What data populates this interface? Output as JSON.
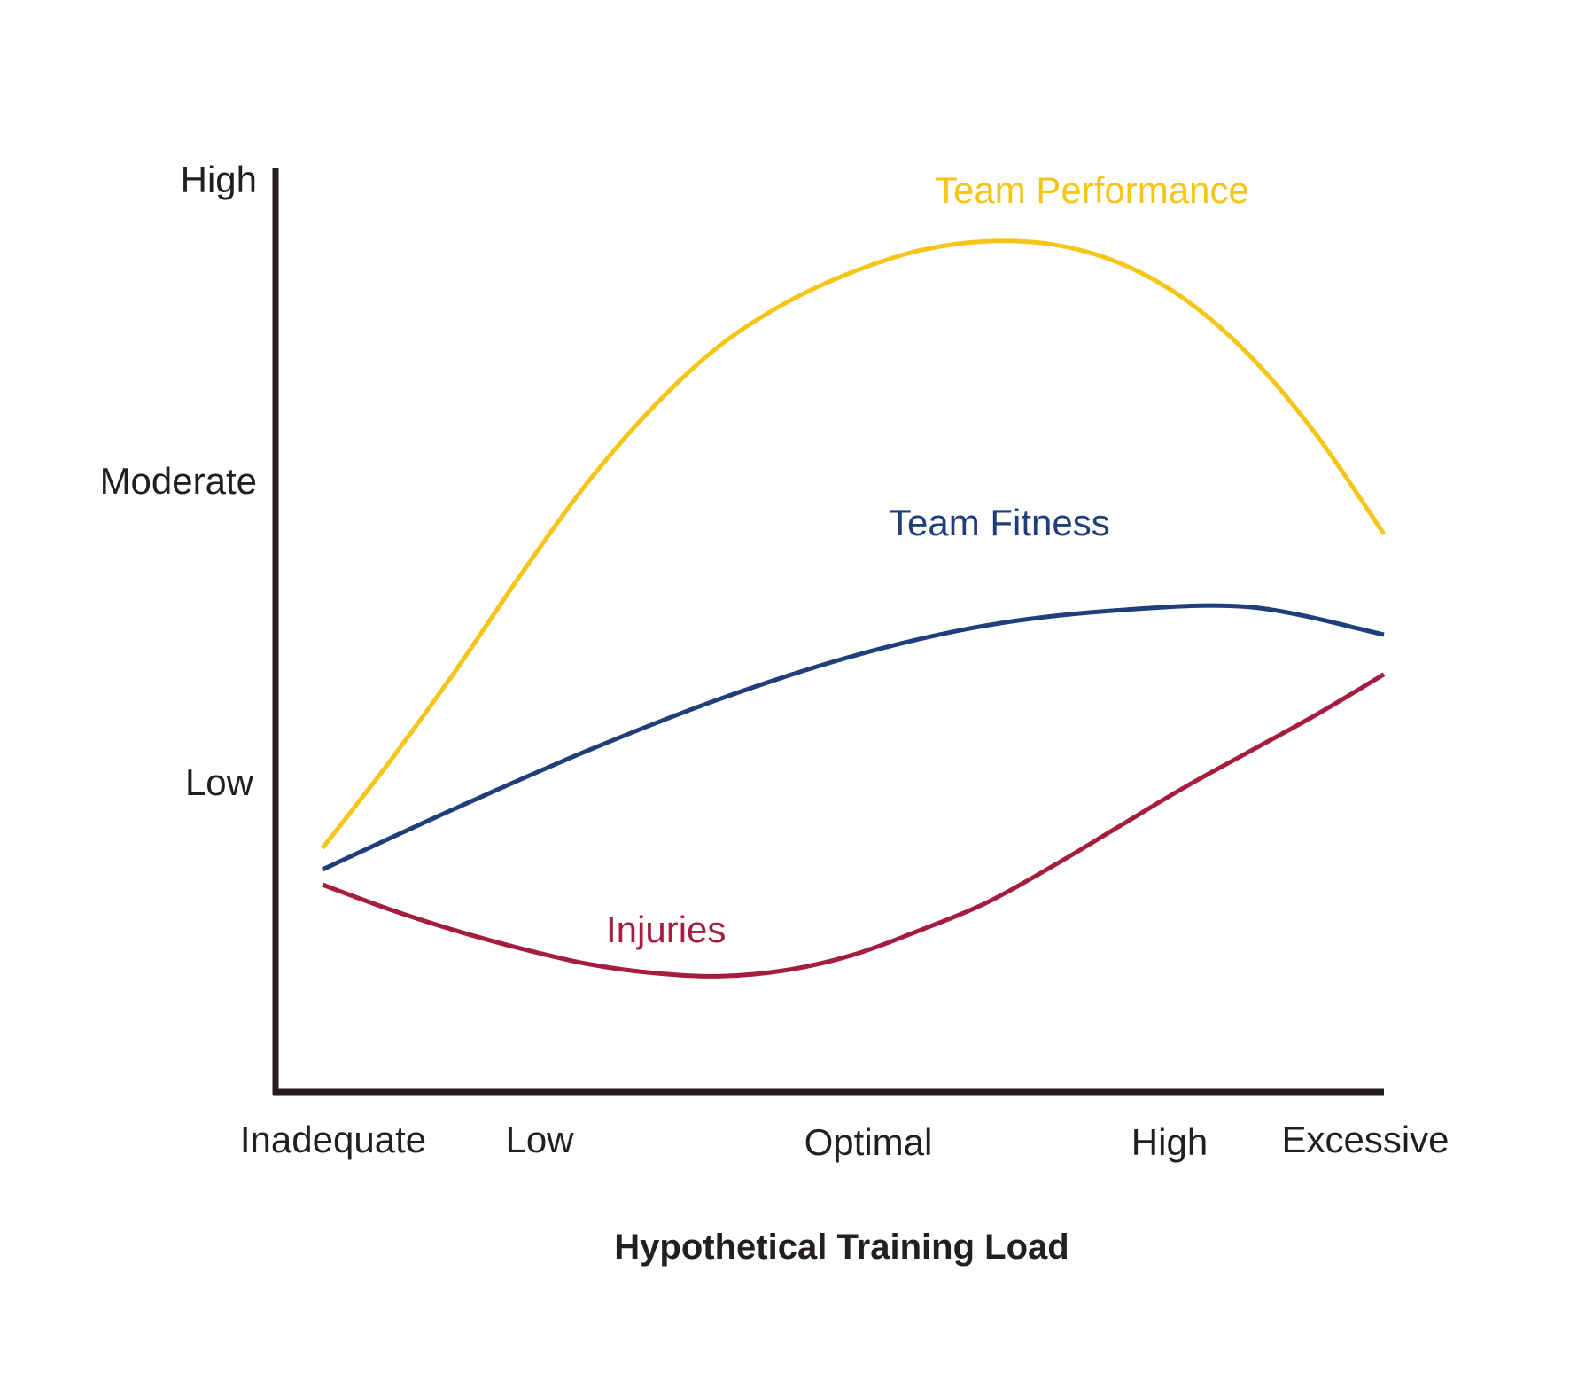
{
  "chart_data": {
    "type": "line",
    "title": "",
    "xlabel": "Hypothetical Training Load",
    "ylabel": "",
    "x_categories": [
      "Inadequate",
      "Low",
      "Optimal",
      "High",
      "Excessive"
    ],
    "xlim": [
      0,
      4
    ],
    "y_categories": [
      "Low",
      "Moderate",
      "High"
    ],
    "ylim": [
      0,
      3
    ],
    "grid": false,
    "legend": "inline labels",
    "series": [
      {
        "name": "Team Performance",
        "color": "#f5c518",
        "x": [
          0.0,
          0.25,
          0.5,
          0.75,
          1.0,
          1.25,
          1.5,
          1.75,
          2.0,
          2.25,
          2.5,
          2.75,
          3.0,
          3.25,
          3.5,
          3.75,
          4.0
        ],
        "y": [
          0.8,
          1.08,
          1.38,
          1.7,
          2.0,
          2.25,
          2.45,
          2.59,
          2.69,
          2.76,
          2.79,
          2.78,
          2.72,
          2.6,
          2.41,
          2.15,
          1.83
        ]
      },
      {
        "name": "Team Fitness",
        "color": "#1f3f7a",
        "x": [
          0.0,
          0.5,
          1.0,
          1.5,
          2.0,
          2.5,
          3.0,
          3.5,
          4.0
        ],
        "y": [
          0.73,
          0.93,
          1.12,
          1.29,
          1.43,
          1.53,
          1.58,
          1.59,
          1.5
        ]
      },
      {
        "name": "Injuries",
        "color": "#a51c3d",
        "x": [
          0.0,
          0.25,
          0.5,
          0.75,
          1.0,
          1.25,
          1.5,
          1.75,
          2.0,
          2.25,
          2.5,
          2.75,
          3.0,
          3.25,
          3.5,
          3.75,
          4.0
        ],
        "y": [
          0.68,
          0.6,
          0.53,
          0.47,
          0.42,
          0.39,
          0.38,
          0.4,
          0.45,
          0.53,
          0.62,
          0.74,
          0.87,
          1.0,
          1.12,
          1.24,
          1.37
        ]
      }
    ]
  }
}
